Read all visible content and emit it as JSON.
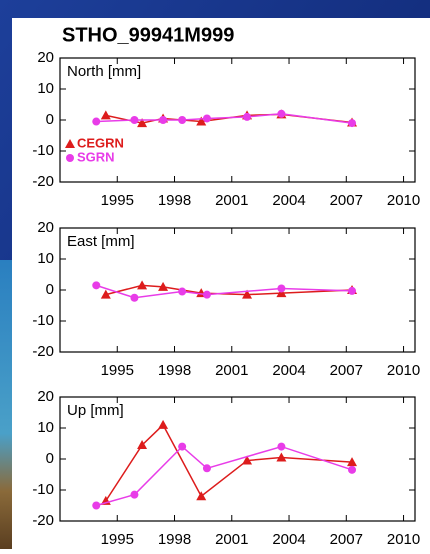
{
  "title": "STHO_99941M999",
  "chart_data": [
    {
      "type": "line",
      "label": "North [mm]",
      "xlim": [
        1992,
        2010.6
      ],
      "ylim": [
        -20,
        20
      ],
      "xticks": [
        1995,
        1998,
        2001,
        2004,
        2007,
        2010
      ],
      "yticks": [
        -20,
        -10,
        0,
        10,
        20
      ],
      "legend": "lower left",
      "series": [
        {
          "name": "CEGRN",
          "color": "#dd1c1c",
          "marker": "triangle",
          "x": [
            1994.4,
            1996.3,
            1997.4,
            1999.4,
            2001.8,
            2003.6,
            2007.3
          ],
          "values": [
            1.5,
            -1,
            0.5,
            -0.5,
            1.5,
            1.8,
            -0.8
          ]
        },
        {
          "name": "SGRN",
          "color": "#e83ce8",
          "marker": "circle",
          "x": [
            1993.9,
            1995.9,
            1997.4,
            1998.4,
            1999.7,
            2001.8,
            2003.6,
            2007.3
          ],
          "values": [
            -0.5,
            0,
            0,
            0,
            0.5,
            1,
            2,
            -1
          ]
        }
      ]
    },
    {
      "type": "line",
      "label": "East [mm]",
      "xlim": [
        1992,
        2010.6
      ],
      "ylim": [
        -20,
        20
      ],
      "xticks": [
        1995,
        1998,
        2001,
        2004,
        2007,
        2010
      ],
      "yticks": [
        -20,
        -10,
        0,
        10,
        20
      ],
      "series": [
        {
          "color": "#dd1c1c",
          "marker": "triangle",
          "x": [
            1994.4,
            1996.3,
            1997.4,
            1999.4,
            2001.8,
            2003.6,
            2007.3
          ],
          "values": [
            -1.5,
            1.5,
            1,
            -1,
            -1.5,
            -1,
            0
          ]
        },
        {
          "color": "#e83ce8",
          "marker": "circle",
          "x": [
            1993.9,
            1995.9,
            1998.4,
            1999.7,
            2003.6,
            2007.3
          ],
          "values": [
            1.5,
            -2.5,
            -0.5,
            -1.5,
            0.5,
            -0.3
          ]
        }
      ]
    },
    {
      "type": "line",
      "label": "Up [mm]",
      "xlim": [
        1992,
        2010.6
      ],
      "ylim": [
        -20,
        20
      ],
      "xticks": [
        1995,
        1998,
        2001,
        2004,
        2007,
        2010
      ],
      "yticks": [
        -20,
        -10,
        0,
        10,
        20
      ],
      "series": [
        {
          "color": "#dd1c1c",
          "marker": "triangle",
          "x": [
            1994.4,
            1996.3,
            1997.4,
            1999.4,
            2001.8,
            2003.6,
            2007.3
          ],
          "values": [
            -13.5,
            4.5,
            11,
            -12,
            -0.5,
            0.5,
            -1
          ]
        },
        {
          "color": "#e83ce8",
          "marker": "circle",
          "x": [
            1993.9,
            1995.9,
            1998.4,
            1999.7,
            2003.6,
            2007.3
          ],
          "values": [
            -15,
            -11.5,
            4,
            -3,
            4,
            -3.5
          ]
        }
      ]
    }
  ]
}
